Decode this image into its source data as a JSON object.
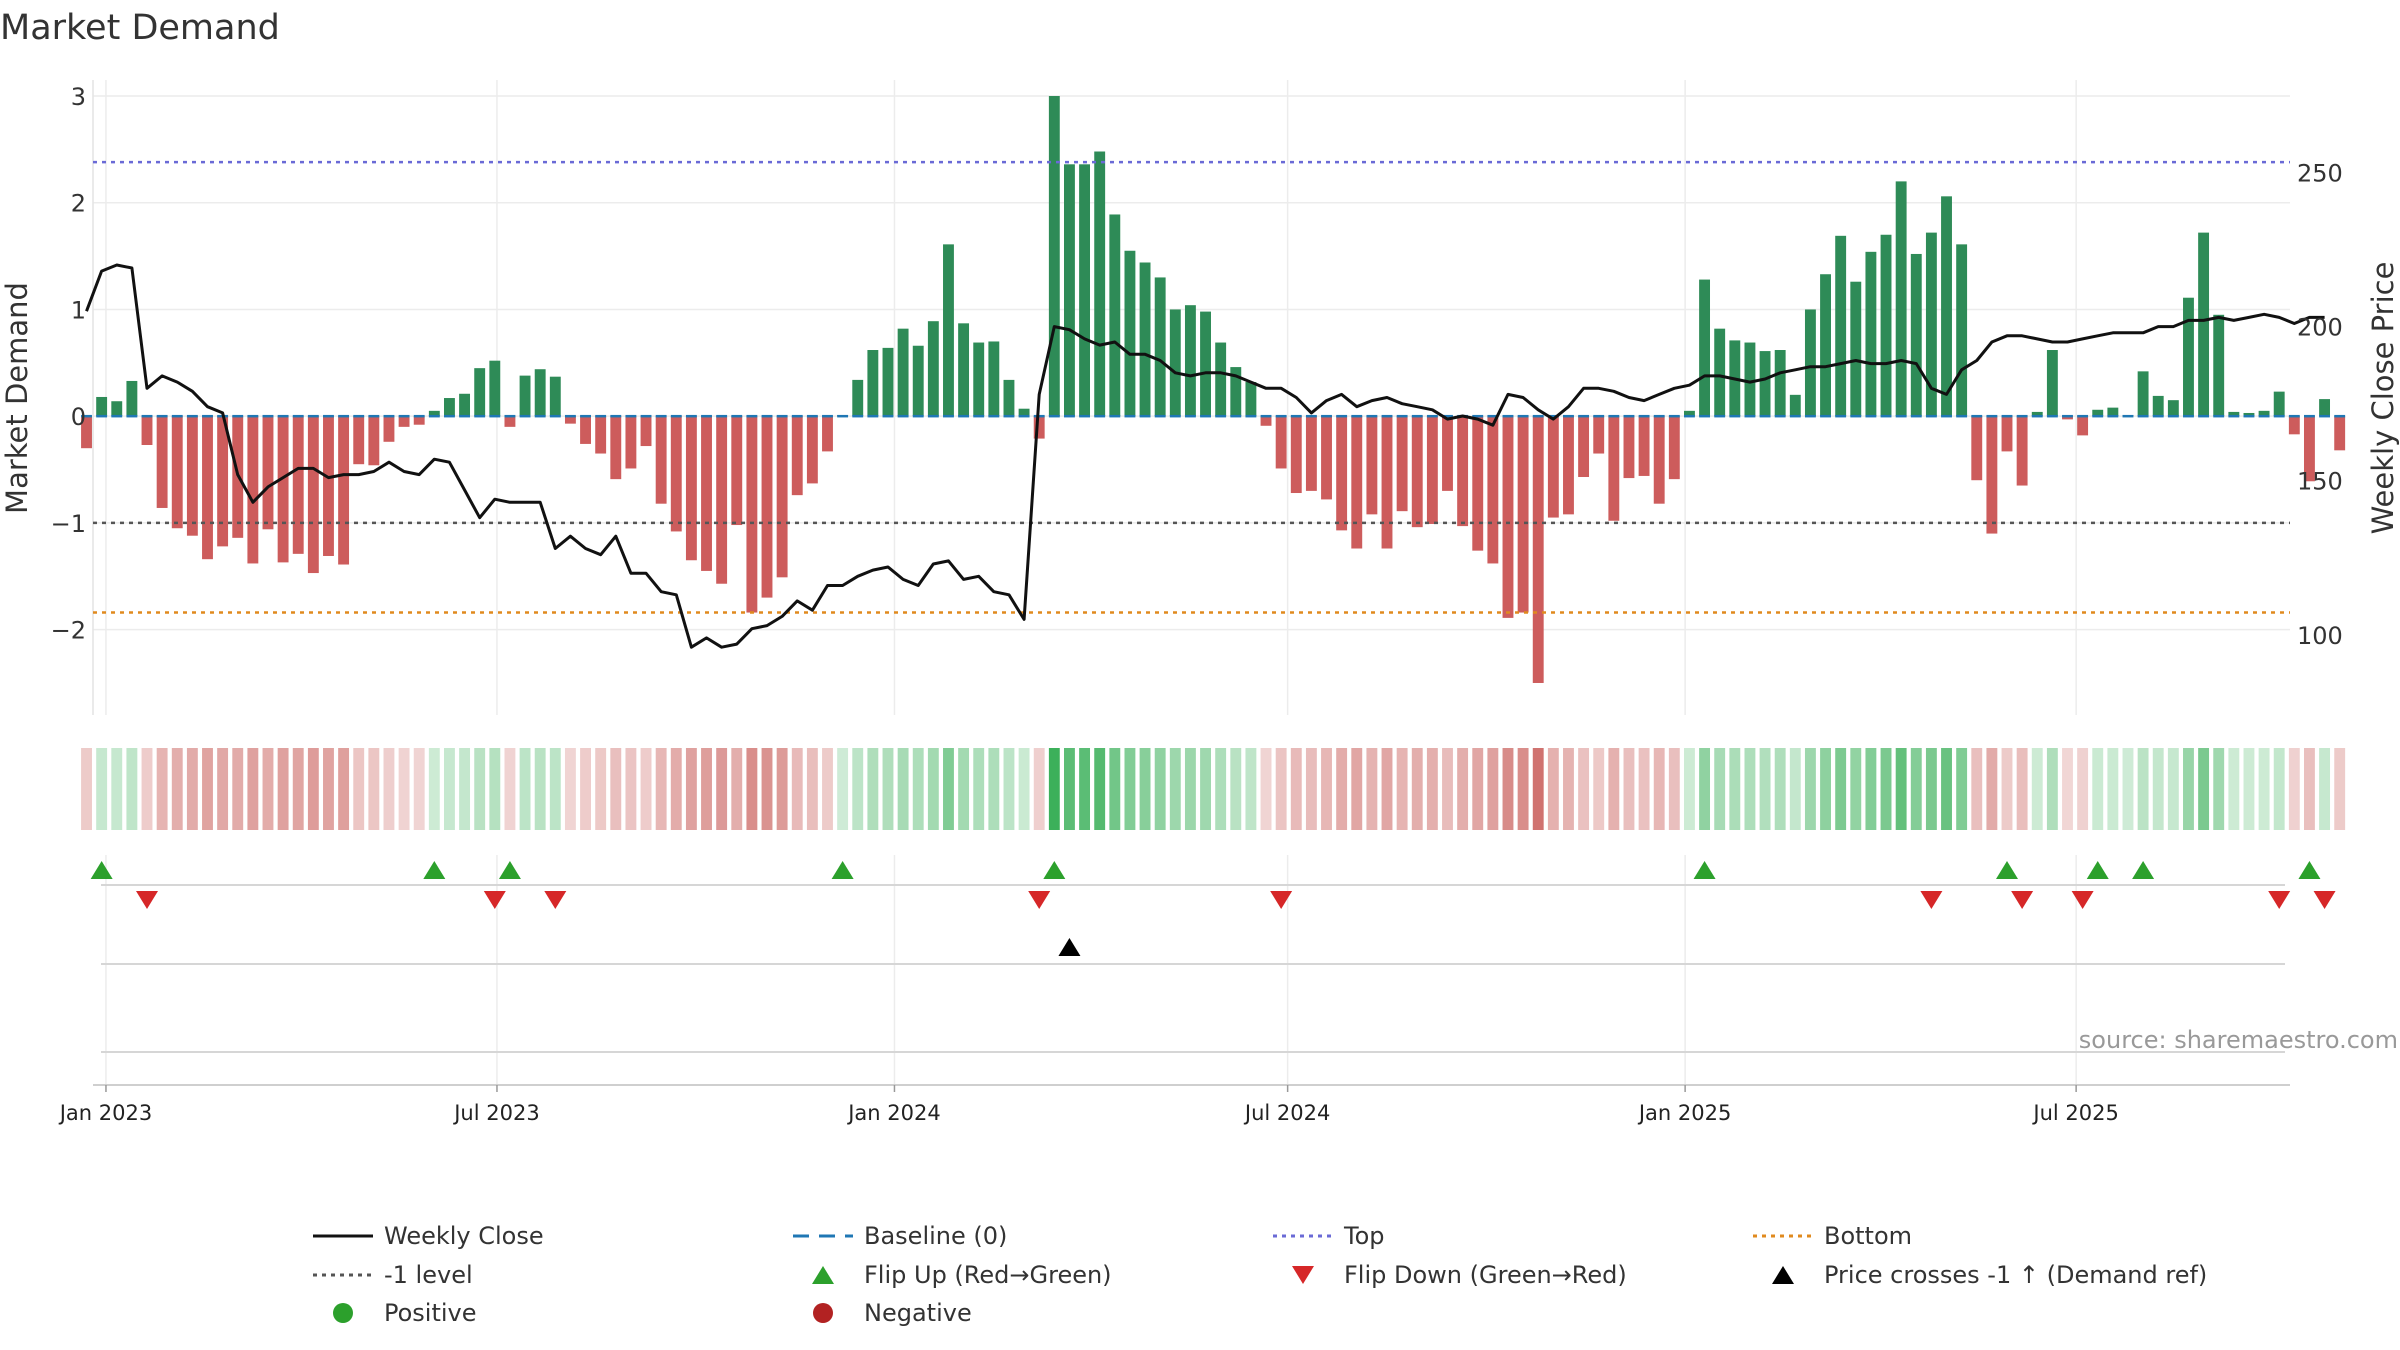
{
  "chart_data": {
    "type": "bar",
    "title": "Market Demand",
    "ylabel": "Market Demand",
    "y2label": "Weekly Close Price",
    "ylim": [
      -2.8,
      3.15
    ],
    "y2lim": [
      74,
      280
    ],
    "yticks": [
      -2,
      -1,
      0,
      1,
      2,
      3
    ],
    "ytick_labels": [
      "−2",
      "−1",
      "0",
      "1",
      "2",
      "3"
    ],
    "y2ticks": [
      100,
      150,
      200,
      250
    ],
    "xlim": [
      "2022-12-26",
      "2025-10-08"
    ],
    "xticks": [
      {
        "date": "2023-01-01",
        "label": "Jan 2023"
      },
      {
        "date": "2023-07-01",
        "label": "Jul 2023"
      },
      {
        "date": "2024-01-01",
        "label": "Jan 2024"
      },
      {
        "date": "2024-07-01",
        "label": "Jul 2024"
      },
      {
        "date": "2025-01-01",
        "label": "Jan 2025"
      },
      {
        "date": "2025-07-01",
        "label": "Jul 2025"
      }
    ],
    "start_date": "2022-12-23",
    "week_days": 7,
    "reference_lines": {
      "top": 2.38,
      "bottom": -1.84,
      "minus_one": -1,
      "baseline": 0
    },
    "demand": [
      -0.3,
      0.18,
      0.14,
      0.33,
      -0.27,
      -0.86,
      -1.05,
      -1.12,
      -1.34,
      -1.22,
      -1.14,
      -1.38,
      -1.06,
      -1.37,
      -1.29,
      -1.47,
      -1.31,
      -1.39,
      -0.45,
      -0.46,
      -0.24,
      -0.1,
      -0.08,
      0.05,
      0.17,
      0.21,
      0.45,
      0.52,
      -0.1,
      0.38,
      0.44,
      0.37,
      -0.07,
      -0.26,
      -0.35,
      -0.59,
      -0.49,
      -0.28,
      -0.82,
      -1.08,
      -1.35,
      -1.45,
      -1.57,
      -1.02,
      -1.84,
      -1.7,
      -1.51,
      -0.74,
      -0.63,
      -0.33,
      0.01,
      0.34,
      0.62,
      0.64,
      0.82,
      0.66,
      0.89,
      1.61,
      0.87,
      0.69,
      0.7,
      0.34,
      0.07,
      -0.21,
      3.0,
      2.36,
      2.36,
      2.48,
      1.89,
      1.55,
      1.44,
      1.3,
      1.0,
      1.04,
      0.98,
      0.69,
      0.46,
      0.32,
      -0.09,
      -0.49,
      -0.72,
      -0.7,
      -0.78,
      -1.07,
      -1.24,
      -0.92,
      -1.24,
      -0.89,
      -1.04,
      -1.01,
      -0.7,
      -1.03,
      -1.26,
      -1.38,
      -1.89,
      -1.84,
      -2.5,
      -0.95,
      -0.92,
      -0.57,
      -0.35,
      -0.98,
      -0.58,
      -0.56,
      -0.82,
      -0.59,
      0.05,
      1.28,
      0.82,
      0.71,
      0.69,
      0.61,
      0.62,
      0.2,
      1.0,
      1.33,
      1.69,
      1.26,
      1.54,
      1.7,
      2.2,
      1.52,
      1.72,
      2.06,
      1.61,
      -0.6,
      -1.1,
      -0.33,
      -0.65,
      0.04,
      0.62,
      -0.03,
      -0.18,
      0.06,
      0.08,
      0.01,
      0.42,
      0.19,
      0.15,
      1.11,
      1.72,
      0.95,
      0.04,
      0.03,
      0.05,
      0.23,
      -0.17,
      -0.61,
      0.16,
      -0.32
    ],
    "price": [
      205,
      218,
      220,
      219,
      180,
      184,
      182,
      179,
      174,
      172,
      152,
      143,
      148,
      151,
      154,
      154,
      151,
      152,
      152,
      153,
      156,
      153,
      152,
      157,
      156,
      147,
      138,
      144,
      143,
      143,
      143,
      128,
      132,
      128,
      126,
      132,
      120,
      120,
      114,
      113,
      96,
      99,
      96,
      97,
      102,
      103,
      106,
      111,
      108,
      116,
      116,
      119,
      121,
      122,
      118,
      116,
      123,
      124,
      118,
      119,
      114,
      113,
      105,
      178,
      200,
      199,
      196,
      194,
      195,
      191,
      191,
      189,
      185,
      184,
      185,
      185,
      184,
      182,
      180,
      180,
      177,
      172,
      176,
      178,
      174,
      176,
      177,
      175,
      174,
      173,
      170,
      171,
      170,
      168,
      178,
      177,
      173,
      170,
      174,
      180,
      180,
      179,
      177,
      176,
      178,
      180,
      181,
      184,
      184,
      183,
      182,
      183,
      185,
      186,
      187,
      187,
      188,
      189,
      188,
      188,
      189,
      188,
      180,
      178,
      186,
      189,
      195,
      197,
      197,
      196,
      195,
      195,
      196,
      197,
      198,
      198,
      198,
      200,
      200,
      202,
      202,
      203,
      202,
      203,
      204,
      203,
      201,
      203,
      203
    ],
    "flip_up_weeks": [
      1,
      23,
      28,
      50,
      64,
      107,
      127,
      133,
      136,
      147
    ],
    "flip_down_weeks": [
      4,
      27,
      31,
      63,
      79,
      122,
      128,
      132,
      145,
      148
    ],
    "price_cross_weeks": [
      65
    ],
    "legend": {
      "close": "Weekly Close",
      "baseline": "Baseline (0)",
      "top": "Top",
      "bottom": "Bottom",
      "minus_one": "-1 level",
      "flip_up": "Flip Up (Red→Green)",
      "flip_down": "Flip Down (Green→Red)",
      "cross": "Price crosses -1 ↑ (Demand ref)",
      "positive": "Positive",
      "negative": "Negative"
    },
    "source": "source: sharemaestro.com"
  },
  "colors": {
    "positive": "#2e8b57",
    "negative": "#cd5c5c",
    "flip_up": "#2ca02c",
    "flip_down": "#d62728",
    "positive_dot": "#2ca02c",
    "negative_dot": "#b22222",
    "baseline": "#1f77b4",
    "top": "#6a6ad6",
    "bottom": "#e08a1e",
    "minus_one": "#555555",
    "close": "#111111"
  }
}
